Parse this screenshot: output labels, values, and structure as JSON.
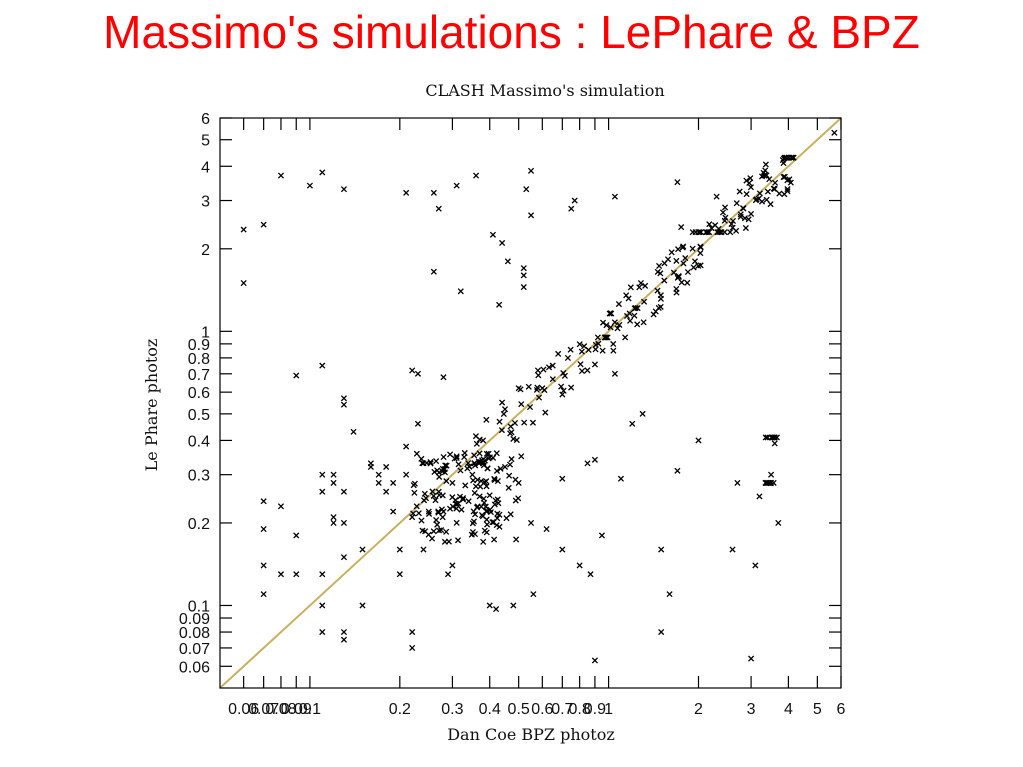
{
  "slide": {
    "title": "Massimo's simulations : LePhare & BPZ",
    "title_color": "#ff0000"
  },
  "chart_data": {
    "type": "scatter",
    "title": "CLASH Massimo's simulation",
    "xlabel": "Dan Coe BPZ photoz",
    "ylabel": "Le Phare photoz",
    "xscale": "log",
    "yscale": "log",
    "xlim": [
      0.05,
      6
    ],
    "ylim": [
      0.05,
      6
    ],
    "grid": false,
    "marker": "x",
    "reference_line": {
      "from": [
        0.05,
        0.05
      ],
      "to": [
        6,
        6
      ],
      "color": "#c8b060"
    },
    "x_ticks": [
      0.06,
      0.07,
      0.08,
      0.09,
      0.1,
      0.2,
      0.3,
      0.4,
      0.5,
      0.6,
      0.7,
      0.8,
      0.9,
      1,
      2,
      3,
      4,
      5,
      6
    ],
    "x_tick_labels": [
      "0.06",
      "0.07",
      "0.08",
      "0.09",
      "0.1",
      "0.2",
      "0.3",
      "0.4",
      "0.5",
      "0.6",
      "0.7",
      "0.8",
      "0.9",
      "1",
      "2",
      "3",
      "4",
      "5",
      "6"
    ],
    "y_ticks": [
      0.06,
      0.07,
      0.08,
      0.09,
      0.1,
      0.2,
      0.3,
      0.4,
      0.5,
      0.6,
      0.7,
      0.8,
      0.9,
      1,
      2,
      3,
      4,
      5,
      6
    ],
    "y_tick_labels": [
      "0.06",
      "0.07",
      "0.08",
      "0.09",
      "0.1",
      "0.2",
      "0.3",
      "0.4",
      "0.5",
      "0.6",
      "0.7",
      "0.8",
      "0.9",
      "1",
      "2",
      "3",
      "4",
      "5",
      "6"
    ],
    "points": [
      [
        0.06,
        2.35
      ],
      [
        0.06,
        1.5
      ],
      [
        0.07,
        2.45
      ],
      [
        0.07,
        0.24
      ],
      [
        0.07,
        0.19
      ],
      [
        0.07,
        0.14
      ],
      [
        0.07,
        0.11
      ],
      [
        0.08,
        0.23
      ],
      [
        0.08,
        0.13
      ],
      [
        0.08,
        3.7
      ],
      [
        0.09,
        0.69
      ],
      [
        0.09,
        0.18
      ],
      [
        0.09,
        0.13
      ],
      [
        0.1,
        3.4
      ],
      [
        0.11,
        0.26
      ],
      [
        0.11,
        3.8
      ],
      [
        0.11,
        0.75
      ],
      [
        0.11,
        0.3
      ],
      [
        0.11,
        0.13
      ],
      [
        0.11,
        0.1
      ],
      [
        0.11,
        0.08
      ],
      [
        0.12,
        0.2
      ],
      [
        0.12,
        0.21
      ],
      [
        0.12,
        0.3
      ],
      [
        0.12,
        0.28
      ],
      [
        0.13,
        3.3
      ],
      [
        0.13,
        0.57
      ],
      [
        0.13,
        0.54
      ],
      [
        0.13,
        0.08
      ],
      [
        0.13,
        0.075
      ],
      [
        0.13,
        0.15
      ],
      [
        0.13,
        0.2
      ],
      [
        0.13,
        0.26
      ],
      [
        0.14,
        0.43
      ],
      [
        0.15,
        0.16
      ],
      [
        0.15,
        0.1
      ],
      [
        0.16,
        0.32
      ],
      [
        0.16,
        0.33
      ],
      [
        0.17,
        0.3
      ],
      [
        0.17,
        0.28
      ],
      [
        0.18,
        0.32
      ],
      [
        0.18,
        0.26
      ],
      [
        0.19,
        0.28
      ],
      [
        0.19,
        0.22
      ],
      [
        0.2,
        0.16
      ],
      [
        0.2,
        0.13
      ],
      [
        0.21,
        3.2
      ],
      [
        0.21,
        0.38
      ],
      [
        0.21,
        0.3
      ],
      [
        0.22,
        0.07
      ],
      [
        0.22,
        0.08
      ],
      [
        0.22,
        0.21
      ],
      [
        0.22,
        0.72
      ],
      [
        0.23,
        0.7
      ],
      [
        0.23,
        0.46
      ],
      [
        0.24,
        0.33
      ],
      [
        0.24,
        0.16
      ],
      [
        0.25,
        0.22
      ],
      [
        0.26,
        3.2
      ],
      [
        0.26,
        1.65
      ],
      [
        0.27,
        2.8
      ],
      [
        0.27,
        0.26
      ],
      [
        0.28,
        0.68
      ],
      [
        0.28,
        0.22
      ],
      [
        0.29,
        0.13
      ],
      [
        0.3,
        0.28
      ],
      [
        0.3,
        0.14
      ],
      [
        0.31,
        3.4
      ],
      [
        0.31,
        0.35
      ],
      [
        0.32,
        1.4
      ],
      [
        0.33,
        0.36
      ],
      [
        0.34,
        0.24
      ],
      [
        0.35,
        0.3
      ],
      [
        0.36,
        3.7
      ],
      [
        0.37,
        0.25
      ],
      [
        0.38,
        0.4
      ],
      [
        0.39,
        0.22
      ],
      [
        0.4,
        0.1
      ],
      [
        0.41,
        2.25
      ],
      [
        0.42,
        0.097
      ],
      [
        0.43,
        1.25
      ],
      [
        0.44,
        2.1
      ],
      [
        0.44,
        0.55
      ],
      [
        0.45,
        0.52
      ],
      [
        0.46,
        1.8
      ],
      [
        0.47,
        0.45
      ],
      [
        0.48,
        0.1
      ],
      [
        0.5,
        0.62
      ],
      [
        0.5,
        0.28
      ],
      [
        0.51,
        0.35
      ],
      [
        0.52,
        1.7
      ],
      [
        0.52,
        1.6
      ],
      [
        0.52,
        1.45
      ],
      [
        0.53,
        3.3
      ],
      [
        0.55,
        3.85
      ],
      [
        0.55,
        2.65
      ],
      [
        0.55,
        0.2
      ],
      [
        0.56,
        0.11
      ],
      [
        0.58,
        0.72
      ],
      [
        0.6,
        0.62
      ],
      [
        0.62,
        0.19
      ],
      [
        0.65,
        0.75
      ],
      [
        0.7,
        0.29
      ],
      [
        0.7,
        0.16
      ],
      [
        0.75,
        2.8
      ],
      [
        0.77,
        3.0
      ],
      [
        0.8,
        0.14
      ],
      [
        0.85,
        0.33
      ],
      [
        0.87,
        0.13
      ],
      [
        0.9,
        0.34
      ],
      [
        0.9,
        0.063
      ],
      [
        0.95,
        0.18
      ],
      [
        1.05,
        3.1
      ],
      [
        1.05,
        0.7
      ],
      [
        1.1,
        0.29
      ],
      [
        1.2,
        0.46
      ],
      [
        1.3,
        0.5
      ],
      [
        1.5,
        0.16
      ],
      [
        1.5,
        0.08
      ],
      [
        1.6,
        0.11
      ],
      [
        1.7,
        0.31
      ],
      [
        1.7,
        3.5
      ],
      [
        1.75,
        2.4
      ],
      [
        2.0,
        0.4
      ],
      [
        2.3,
        3.1
      ],
      [
        2.6,
        0.16
      ],
      [
        2.7,
        0.28
      ],
      [
        3.0,
        0.064
      ],
      [
        3.1,
        0.14
      ],
      [
        3.2,
        0.25
      ],
      [
        3.5,
        0.3
      ],
      [
        3.6,
        0.39
      ],
      [
        3.7,
        0.2
      ],
      [
        5.7,
        5.3
      ]
    ],
    "clusters": [
      {
        "x": [
          0.22,
          0.5
        ],
        "y": [
          0.17,
          0.36
        ],
        "n": 150
      },
      {
        "x": [
          0.35,
          1.0
        ],
        "y": [
          0.33,
          0.95
        ],
        "n": 60
      },
      {
        "x": [
          0.9,
          2.1
        ],
        "y": [
          0.85,
          2.3
        ],
        "n": 70
      },
      {
        "x": [
          2.0,
          4.2
        ],
        "y": [
          2.3,
          4.3
        ],
        "n": 80
      },
      {
        "x": [
          3.35,
          3.6
        ],
        "y": [
          0.18,
          0.28
        ],
        "n": 14
      },
      {
        "x": [
          3.35,
          3.7
        ],
        "y": [
          0.37,
          0.41
        ],
        "n": 8
      }
    ]
  }
}
